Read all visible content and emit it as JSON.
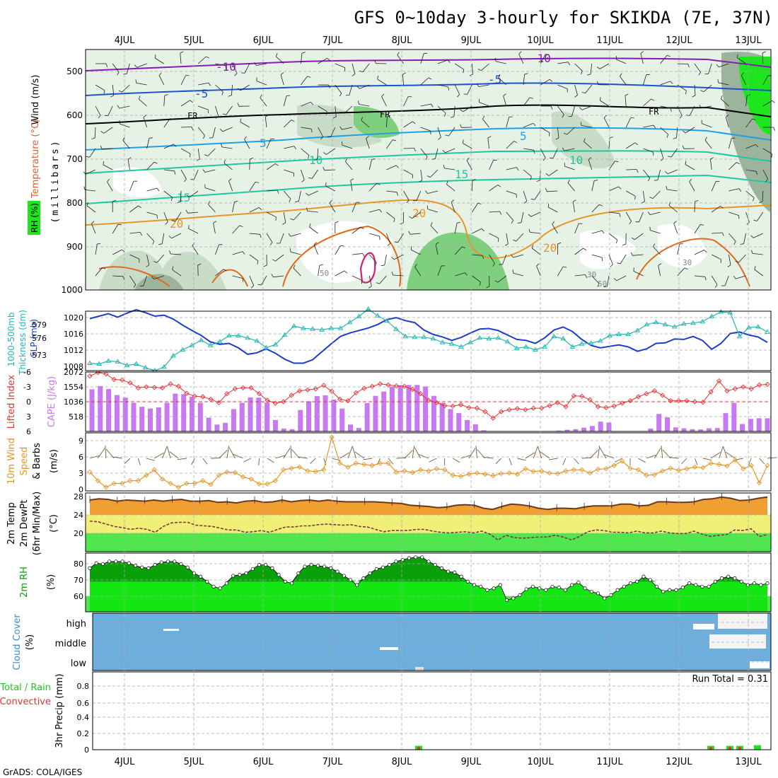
{
  "header": {
    "title": "GFS 0~10day 3-hourly for SKIKDA (7E, 37N)",
    "footer": "GrADS: COLA/IGES",
    "run_total": "Run Total = 0.31"
  },
  "colors": {
    "rh_fill_light": "#e6f2e6",
    "rh_fill_mid": "#c8dcc8",
    "rh_fill_dark": "#9cb49c",
    "rh_fill_green": "#7ed07e",
    "rh_fill_bright": "#1ee61e",
    "temp_purple": "#8a1ab4",
    "temp_blue": "#1e50d2",
    "temp_cyan": "#1ea0e6",
    "temp_teal": "#1ec8a0",
    "temp_orange": "#e69628",
    "temp_magenta": "#d21e78",
    "slp": "#1e3cc8",
    "thickness": "#28b4b4",
    "lifted_index": "#e63232",
    "cape_bar": "#c878f0",
    "wind": "#e69628",
    "temp_band": "#f0a032",
    "dewpt_band_yellow": "#f0f078",
    "dewpt_band_green": "#50e650",
    "rh_dark": "#0aa00a",
    "rh_bright": "#14e614",
    "cloud": "#6eaedc",
    "precip_green": "#1ee61e",
    "precip_red": "#e63232"
  },
  "x_axis": {
    "days": [
      "4JUL",
      "5JUL",
      "6JUL",
      "7JUL",
      "8JUL",
      "9JUL",
      "10JUL",
      "11JUL",
      "12JUL",
      "13JUL"
    ]
  },
  "panels": {
    "upper_air": {
      "labels": [
        "Wind (m/s)",
        "Temperature (°C)",
        "RH (%)",
        "(millibars)"
      ],
      "yticks": [
        "500",
        "600",
        "700",
        "800",
        "900",
        "1000"
      ],
      "contour_labels": [
        "-10",
        "-5",
        "FR",
        "5",
        "10",
        "15",
        "20",
        "30",
        "50"
      ]
    },
    "slp_thickness": {
      "labels": [
        "1000-500mb",
        "Thickness (dm)",
        "SLP (mb)"
      ],
      "left_ticks": [
        "579",
        "576",
        "573"
      ],
      "right_ticks": [
        "1020",
        "1016",
        "1012",
        "1008"
      ]
    },
    "cape_li": {
      "labels": [
        "Lifted Index",
        "CAPE (J/kg)"
      ],
      "li_ticks": [
        "-6",
        "-3",
        "0",
        "3",
        "6"
      ],
      "cape_ticks": [
        "2072",
        "1554",
        "1036",
        "518"
      ]
    },
    "wind10m": {
      "labels": [
        "10m Wind",
        "Speed",
        "& Barbs",
        "(m/s)"
      ],
      "yticks": [
        "9",
        "6",
        "3",
        "0"
      ]
    },
    "temp2m": {
      "labels": [
        "2m Temp",
        "2m DewPt",
        "(6hr Min/Max)",
        "(°C)"
      ],
      "yticks": [
        "28",
        "24",
        "20"
      ]
    },
    "rh2m": {
      "labels": [
        "2m RH",
        "(%)"
      ],
      "yticks": [
        "80",
        "70",
        "60"
      ]
    },
    "cloud": {
      "labels": [
        "Cloud Cover",
        "(%)"
      ],
      "yticks": [
        "high",
        "middle",
        "low"
      ]
    },
    "precip": {
      "labels": [
        "Total / Rain",
        "Convective",
        "3hr Precip (mm)"
      ],
      "yticks": [
        "0.8",
        "0.6",
        "0.4",
        "0.2",
        "0"
      ]
    }
  },
  "chart_data": [
    {
      "type": "line",
      "title": "1000-500mb Thickness (dm) / SLP (mb)",
      "series": [
        {
          "name": "SLP (mb)",
          "values": [
            1018.5,
            1019,
            1019.5,
            1018.8,
            1019.6,
            1020.3,
            1019.7,
            1019,
            1019.2,
            1018.4,
            1017.2,
            1016.1,
            1015.1,
            1013.8,
            1013.3,
            1013.5,
            1012.6,
            1011.3,
            1011.6,
            1012.4,
            1011.5,
            1010.3,
            1009.5,
            1009.5,
            1010.2,
            1011.8,
            1013.4,
            1014.9,
            1015.6,
            1016.1,
            1016.6,
            1017.3,
            1018.3,
            1018.7,
            1018.1,
            1017.7,
            1016.2,
            1015.3,
            1014.8,
            1014.1,
            1014.7,
            1015.6,
            1016.4,
            1016.5,
            1016.1,
            1015.2,
            1014.3,
            1014.1,
            1013.5,
            1014.6,
            1016.2,
            1016.8,
            1015.9,
            1014.3,
            1013.1,
            1012.6,
            1012.9,
            1013.2,
            1012.8,
            1011.9,
            1012.4,
            1013.5,
            1013.6,
            1014.4,
            1014.3,
            1014.9,
            1014.1,
            1012.3,
            1013.5,
            1015.5,
            1015.8,
            1015.2,
            1014.8,
            1013.7
          ]
        },
        {
          "name": "Thickness (dm)",
          "values": [
            573,
            572.9,
            573.3,
            573.2,
            572.7,
            572.9,
            572.4,
            572,
            572.5,
            574,
            574.8,
            575.4,
            576.1,
            575.4,
            575.9,
            576.7,
            576.7,
            576.4,
            576,
            575.1,
            575.5,
            576.8,
            578,
            577.7,
            577.6,
            577.5,
            577.7,
            577.7,
            578.5,
            579.3,
            580.3,
            579.4,
            578.7,
            577.6,
            576.6,
            576.5,
            576.5,
            576.3,
            575.8,
            575.6,
            575.2,
            575.8,
            576.4,
            576.3,
            576.4,
            575.9,
            575,
            575.2,
            574.8,
            575.2,
            576.6,
            576.3,
            575.2,
            575.6,
            575.7,
            576,
            576.7,
            576.9,
            576.9,
            577.4,
            578.2,
            578.5,
            578.2,
            577.9,
            578.3,
            578.4,
            578.6,
            579.3,
            579.9,
            579.8,
            576.6,
            577.8,
            577.9,
            577.2
          ]
        }
      ],
      "ylim_slp": [
        1008,
        1020
      ],
      "ylim_thickness": [
        572,
        580
      ]
    },
    {
      "type": "bar",
      "title": "Lifted Index / CAPE (J/kg)",
      "series": [
        {
          "name": "CAPE (J/kg)",
          "values": [
            1470,
            1580,
            1480,
            1270,
            1180,
            1000,
            860,
            800,
            840,
            1000,
            1320,
            1300,
            1210,
            1000,
            480,
            240,
            300,
            780,
            1000,
            1190,
            1180,
            1010,
            400,
            100,
            80,
            750,
            1050,
            1230,
            1260,
            1110,
            800,
            240,
            120,
            990,
            1240,
            1390,
            1570,
            1610,
            1620,
            1620,
            1570,
            1240,
            1000,
            780,
            640,
            400,
            250,
            40,
            0,
            0,
            0,
            0,
            0,
            0,
            0,
            0,
            30,
            60,
            80,
            130,
            190,
            340,
            310,
            0,
            0,
            0,
            0,
            100,
            610,
            490,
            140,
            110,
            80,
            70,
            110,
            120,
            640,
            1000,
            260,
            440,
            460,
            460
          ]
        },
        {
          "name": "Lifted Index",
          "values": [
            -5.2,
            -5.9,
            -5.6,
            -4.5,
            -4.4,
            -3.8,
            -2.8,
            -3,
            -2.9,
            -2.8,
            -3.6,
            -3.1,
            -1.7,
            -1.1,
            -1,
            -0.5,
            0.2,
            -1.6,
            -2.6,
            -2.8,
            -2.8,
            -1.6,
            -0.3,
            0.3,
            0,
            -1.3,
            -2.2,
            -2.4,
            -2.6,
            -3.3,
            -2.1,
            -0.5,
            -0.2,
            -1.8,
            -2.7,
            -3.1,
            -3.6,
            -3.4,
            -3.2,
            -3.1,
            -2.5,
            -1.6,
            -0.3,
            0.2,
            0.8,
            0.9,
            0.6,
            1.2,
            1.3,
            2,
            3.3,
            2,
            1.6,
            1.4,
            1.6,
            1.3,
            1.3,
            0.8,
            0.2,
            1,
            -1.2,
            -1.1,
            -0.4,
            1,
            1.2,
            0.9,
            0.3,
            -0.2,
            -1,
            -1.6,
            -2.2,
            -1.3,
            -0.2,
            -0.2,
            -0.2,
            0,
            0.1,
            -2,
            -4.2,
            -2.2,
            -2.6,
            -3,
            -2.6,
            -3.4,
            -3.5
          ]
        }
      ],
      "ylim_li": [
        6,
        -6
      ],
      "ylim_cape": [
        0,
        2072
      ]
    },
    {
      "type": "line",
      "title": "10m Wind Speed (m/s)",
      "series": [
        {
          "name": "Speed",
          "values": [
            3.2,
            1.6,
            0.4,
            1.1,
            1.1,
            1.6,
            1.6,
            2.6,
            3.6,
            1.9,
            1.1,
            0.4,
            1.1,
            1.1,
            1.6,
            0.9,
            2.6,
            3.2,
            3.1,
            2.3,
            1.9,
            1,
            1,
            1.6,
            3.6,
            3.9,
            4.1,
            3.4,
            3.3,
            3.6,
            9.6,
            4.8,
            4.1,
            4.8,
            4.6,
            4.4,
            4.8,
            4.8,
            3.2,
            3.4,
            3.1,
            3.6,
            3.4,
            3.8,
            3.6,
            2.6,
            2.4,
            2.8,
            3,
            2.8,
            2.5,
            2.9,
            3,
            2.8,
            3.8,
            3.3,
            3.4,
            3,
            2.9,
            3.4,
            3.6,
            3.6,
            3,
            3.7,
            3.8,
            4.4,
            5.2,
            3.9,
            3.6,
            2.6,
            2.7,
            3.4,
            3.9,
            3.5,
            3.8,
            4.1,
            4,
            4.8,
            4.6,
            4.3,
            5.4,
            3.8,
            4.4,
            1.2,
            4.4
          ]
        }
      ],
      "ylim": [
        0,
        10
      ]
    },
    {
      "type": "area",
      "title": "2m Temp / 2m DewPt (°C)",
      "series": [
        {
          "name": "2m Temp",
          "values": [
            26.8,
            27,
            26.9,
            26.6,
            26.8,
            26.7,
            26.6,
            26.8,
            26.6,
            26.8,
            26.9,
            26.6,
            26.6,
            26.7,
            26.4,
            26.5,
            26.3,
            26.6,
            26.7,
            26.4,
            26.5,
            26.8,
            26.5,
            26.7,
            26.8,
            26.6,
            26.8,
            26.6,
            26.5,
            26.5,
            26.5,
            26.5,
            26.4,
            26.3,
            26.2,
            25.9,
            25.8,
            25.7,
            25.5,
            25.6,
            25.9,
            26,
            25.9,
            25.4,
            25.2,
            25.7,
            26.1,
            26,
            25.8,
            25.4,
            25.2,
            25.4,
            25.4,
            25.3,
            25.6,
            25.8,
            25.8,
            25.8,
            26.1,
            26.1,
            25.8,
            25.9,
            26.5,
            26.5,
            26.4,
            26.4,
            26.5,
            26.9,
            27,
            27.3,
            27.1,
            26.7,
            26.8,
            27.1,
            27.3
          ]
        },
        {
          "name": "2m DewPt",
          "values": [
            23.2,
            23.1,
            22.7,
            22.3,
            22.1,
            21.8,
            22,
            21.8,
            21.3,
            22.3,
            22.9,
            23,
            23,
            22.5,
            22.4,
            22.3,
            22,
            21.7,
            21.7,
            21.3,
            21.4,
            21.6,
            21.3,
            21.8,
            22.2,
            22.2,
            22.4,
            22.4,
            22.6,
            22.7,
            22.6,
            22.5,
            22.6,
            22.3,
            22.2,
            21.8,
            21.4,
            21.6,
            21.6,
            21.6,
            21.8,
            21.8,
            21.5,
            21.3,
            21.2,
            21.3,
            21.4,
            21.2,
            21.5,
            21,
            20,
            20.8,
            20.4,
            20.3,
            20.4,
            20.5,
            20.5,
            20.8,
            20.5,
            20,
            20.6,
            21.4,
            21.7,
            21.6,
            21.3,
            21.3,
            21.2,
            21.5,
            21.2,
            21.2,
            21.5,
            21.2,
            21.1,
            21.1,
            21.5,
            21,
            20.6,
            20.8,
            20.9,
            21.7,
            21.6,
            21.9,
            20.6,
            20.9
          ]
        }
      ],
      "ylim": [
        18,
        28
      ]
    },
    {
      "type": "area",
      "title": "2m RH (%)",
      "series": [
        {
          "name": "2m RH",
          "values": [
            78,
            81,
            80.5,
            82,
            82,
            82,
            81,
            79.5,
            78.5,
            78,
            80,
            81.5,
            82,
            82,
            80.5,
            78.5,
            75,
            73,
            70,
            67,
            66,
            69,
            73.5,
            74,
            75,
            77.5,
            80,
            80,
            78,
            74,
            70,
            69,
            75,
            79,
            80,
            79.5,
            79,
            78,
            76,
            73.5,
            71,
            68,
            72,
            75,
            77.5,
            78.5,
            80,
            82,
            83,
            84,
            84.5,
            84.5,
            82,
            80,
            78,
            76,
            75.5,
            73,
            70,
            68,
            67,
            65,
            66,
            68,
            59,
            60,
            62,
            65.5,
            67,
            66,
            65,
            67,
            66.5,
            65,
            68,
            69.5,
            66,
            64,
            63,
            60,
            62,
            65,
            67,
            69,
            70,
            73,
            71,
            67,
            64,
            65,
            65,
            66.5,
            69,
            68,
            67,
            67,
            70,
            72,
            73,
            72,
            70,
            68,
            69,
            68,
            69
          ]
        }
      ],
      "ylim": [
        52,
        87
      ]
    },
    {
      "type": "bar",
      "title": "3hr Precip (mm)",
      "series": [
        {
          "name": "Total / Rain",
          "values": [
            0.06,
            0.06,
            0.06,
            0.06,
            0.07
          ]
        },
        {
          "name": "Convective",
          "values": [
            0.04,
            0.04,
            0.04,
            0.04,
            0
          ]
        }
      ],
      "x": [
        "8JUL",
        "12JUL",
        "12JUL",
        "12JUL",
        "13JUL"
      ],
      "ylim": [
        0,
        1
      ]
    }
  ]
}
